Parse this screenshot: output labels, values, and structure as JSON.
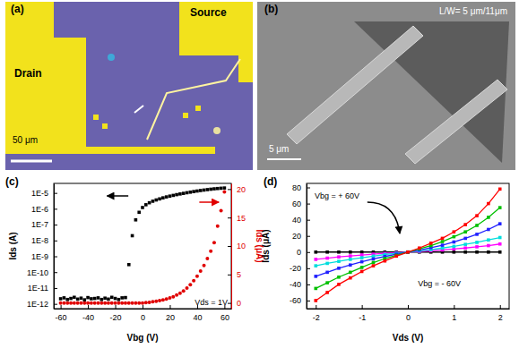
{
  "panels": [
    {
      "label": "(a)",
      "labels": [
        "Drain",
        "Source"
      ],
      "scale_bar": "50 μm"
    },
    {
      "label": "(b)",
      "caption": "L/W= 5 μm/11μm",
      "scale_bar": "5 μm"
    }
  ],
  "chart_data": [
    {
      "type": "scatter",
      "title": "(c)",
      "x_label": "Vbg (V)",
      "y_label": "Ids (A)",
      "y2_label": "Ids (μA)",
      "annotation": "Vds = 1V",
      "log": "y",
      "x": [
        -60,
        -57.5,
        -55,
        -52.5,
        -50,
        -47.5,
        -45,
        -42.5,
        -40,
        -37.5,
        -35,
        -32.5,
        -30,
        -27.5,
        -25,
        -22.5,
        -20,
        -17.5,
        -15,
        -12.5,
        -10,
        -7.5,
        -5,
        -2.5,
        0,
        2.5,
        5,
        7.5,
        10,
        12.5,
        15,
        17.5,
        20,
        22.5,
        25,
        27.5,
        30,
        32.5,
        35,
        37.5,
        40,
        42.5,
        45,
        47.5,
        50,
        52.5,
        55,
        57.5,
        60
      ],
      "series": [
        {
          "color": "#000000",
          "marker": "square",
          "values": [
            2.1e-12,
            2.4e-12,
            1.9e-12,
            2.2e-12,
            2.6e-12,
            2e-12,
            2.3e-12,
            1.8e-12,
            2.5e-12,
            2.1e-12,
            2.2e-12,
            2.4e-12,
            1.9e-12,
            2.3e-12,
            2e-12,
            2.6e-12,
            2.2e-12,
            1.9e-12,
            2.4e-12,
            2.5e-12,
            3e-10,
            2e-08,
            2e-07,
            6e-07,
            1.2e-06,
            1.8e-06,
            2.4e-06,
            3e-06,
            3.6e-06,
            4.2e-06,
            4.9e-06,
            5.6e-06,
            6.3e-06,
            7e-06,
            7.8e-06,
            8.6e-06,
            9.4e-06,
            1.03e-05,
            1.12e-05,
            1.22e-05,
            1.32e-05,
            1.42e-05,
            1.52e-05,
            1.62e-05,
            1.72e-05,
            1.82e-05,
            1.9e-05,
            1.98e-05,
            2.05e-05
          ]
        },
        {
          "color": "#e00000",
          "marker": "circle",
          "axis": "y2",
          "values": [
            0,
            0,
            0,
            0,
            0,
            0,
            0,
            0,
            0,
            0,
            0,
            0,
            0,
            0,
            0,
            0,
            0,
            0,
            0,
            0,
            0,
            0,
            0,
            0,
            0,
            0.05,
            0.1,
            0.2,
            0.3,
            0.4,
            0.55,
            0.7,
            0.9,
            1.1,
            1.4,
            1.7,
            2.1,
            2.6,
            3.2,
            3.9,
            4.7,
            5.6,
            6.6,
            7.8,
            9.1,
            10.6,
            13.5,
            16.2,
            19.5
          ]
        }
      ],
      "xlim": [
        -65,
        65
      ],
      "xticks": [
        -60,
        -40,
        -20,
        0,
        20,
        40,
        60
      ],
      "ylim": [
        5e-13,
        4e-05
      ],
      "yticks": [
        {
          "value": 1e-12,
          "label": "1E-12"
        },
        {
          "value": 1e-11,
          "label": "1E-11"
        },
        {
          "value": 1e-10,
          "label": "1E-10"
        },
        {
          "value": 1e-09,
          "label": "1E-9"
        },
        {
          "value": 1e-08,
          "label": "1E-8"
        },
        {
          "value": 1e-07,
          "label": "1E-7"
        },
        {
          "value": 1e-06,
          "label": "1E-6"
        },
        {
          "value": 1e-05,
          "label": "1E-5"
        }
      ],
      "y2lim": [
        -1,
        21
      ],
      "y2ticks": [
        0,
        5,
        10,
        15,
        20
      ]
    },
    {
      "type": "line",
      "title": "(d)",
      "x_label": "Vds (V)",
      "y_label": "Ids (μA)",
      "annotations": [
        "Vbg = + 60V",
        "Vbg = - 60V"
      ],
      "x": [
        -2,
        -1.75,
        -1.5,
        -1.25,
        -1,
        -0.75,
        -0.5,
        -0.25,
        0,
        0.25,
        0.5,
        0.75,
        1,
        1.25,
        1.5,
        1.75,
        2
      ],
      "series": [
        {
          "color": "#000000",
          "marker": "square",
          "values": [
            0,
            0,
            0,
            0,
            0,
            0,
            0,
            0,
            0,
            0,
            0,
            0,
            0,
            0,
            0,
            0,
            0
          ]
        },
        {
          "color": "#ff00ff",
          "marker": "square",
          "values": [
            -9,
            -7.5,
            -6,
            -4.8,
            -3.6,
            -2.6,
            -1.6,
            -0.8,
            0,
            0.8,
            1.6,
            2.6,
            3.8,
            5,
            6.5,
            8,
            10
          ]
        },
        {
          "color": "#00dddd",
          "marker": "square",
          "values": [
            -17,
            -14,
            -11.5,
            -9,
            -7,
            -5,
            -3,
            -1.5,
            0,
            1.5,
            3,
            5,
            7,
            9.5,
            12,
            15,
            18
          ]
        },
        {
          "color": "#2020ff",
          "marker": "square",
          "values": [
            -30,
            -25,
            -20,
            -16,
            -12,
            -8.5,
            -5.5,
            -2.5,
            0,
            2.5,
            5.5,
            8.5,
            12.5,
            17,
            22,
            28,
            35
          ]
        },
        {
          "color": "#00c000",
          "marker": "square",
          "values": [
            -45,
            -38,
            -31,
            -25,
            -19,
            -13,
            -8,
            -4,
            0,
            4,
            8,
            13,
            19,
            25,
            33,
            43,
            55
          ]
        },
        {
          "color": "#ff0000",
          "marker": "square",
          "values": [
            -60,
            -50,
            -40,
            -32,
            -24,
            -17,
            -11,
            -5,
            0,
            5,
            11,
            17,
            25,
            34,
            45,
            60,
            78
          ]
        }
      ],
      "xlim": [
        -2.2,
        2.2
      ],
      "xticks": [
        -2,
        -1,
        0,
        1,
        2
      ],
      "ylim": [
        -70,
        85
      ],
      "yticks": [
        -60,
        -40,
        -20,
        0,
        20,
        40,
        60,
        80
      ]
    }
  ]
}
